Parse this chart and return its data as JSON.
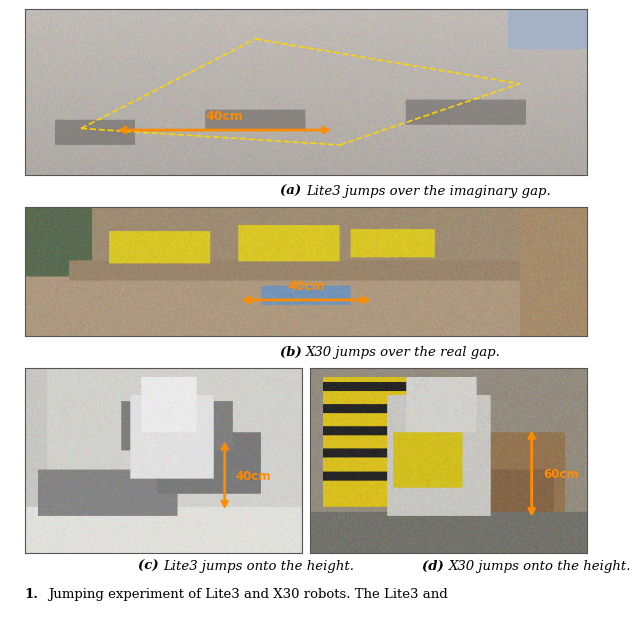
{
  "caption_a": "(a) Lite3 jumps over the imaginary gap.",
  "caption_b": "(b) X30 jumps over the real gap.",
  "caption_c": "(c) Lite3 jumps onto the height.",
  "caption_d": "(d) X30 jumps onto the height.",
  "figure_caption_num": "1.",
  "figure_caption_text": "    Jumping experiment of Lite3 and X30 robots. The Lite3 and",
  "caption_fontsize": 9.5,
  "figure_caption_fontsize": 9.5,
  "background_color": "#ffffff",
  "annotation_40cm_a": "40cm",
  "annotation_40cm_b": "40cm",
  "annotation_40cm_c": "40cm",
  "annotation_60cm_d": "60cm",
  "arrow_color": "#FF8C00",
  "img_a_bg": "#b5b0a8",
  "img_b_bg_left": "#6a7a5a",
  "img_b_bg_right": "#8a7a65",
  "img_b_floor": "#9a8a72",
  "img_c_bg": "#c8c5c0",
  "img_d_bg": "#7a7868"
}
